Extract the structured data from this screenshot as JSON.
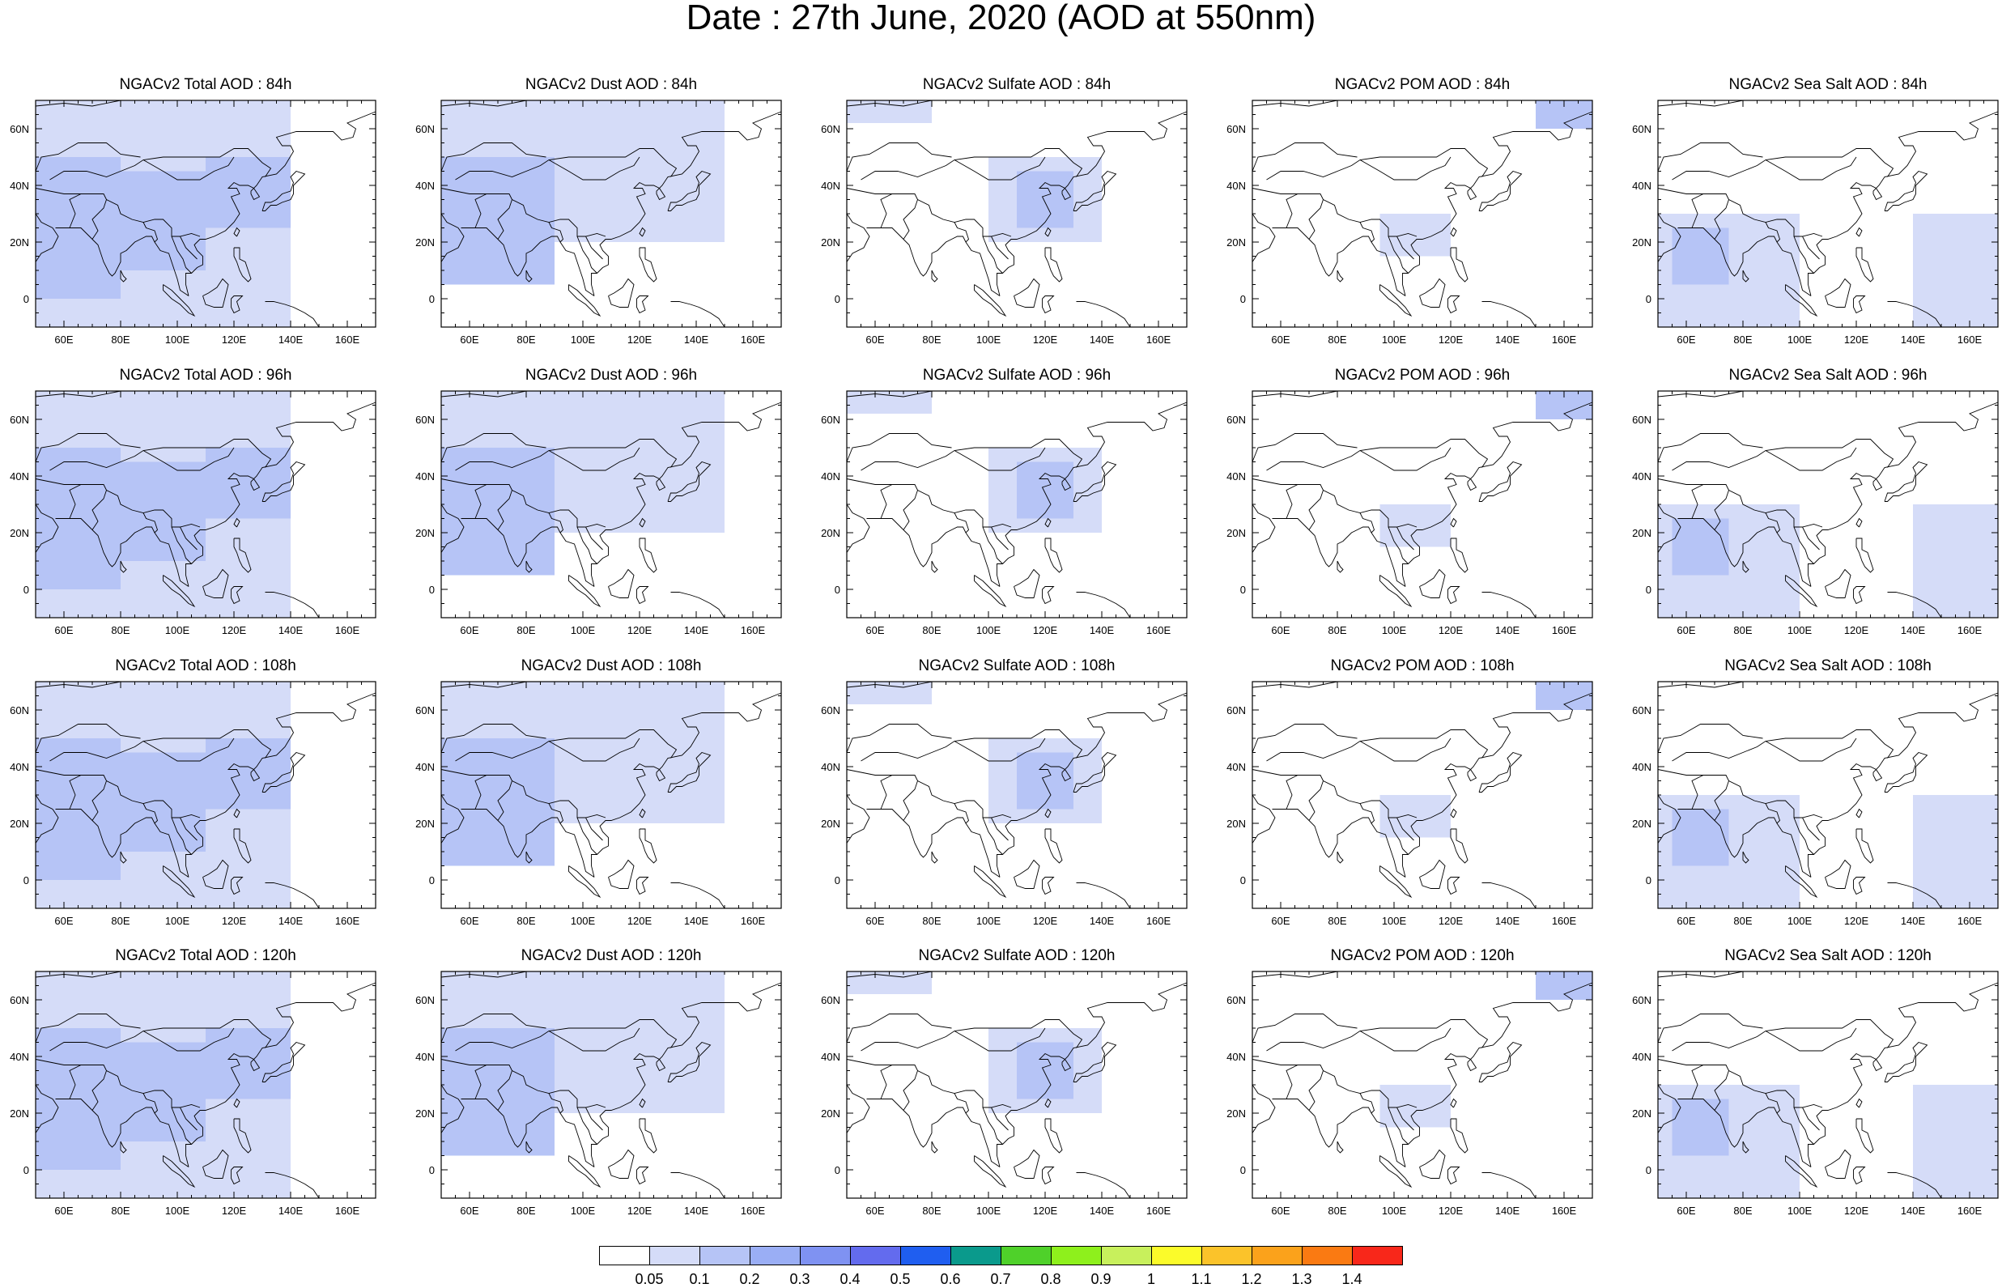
{
  "title": "Date : 27th June, 2020 (AOD at 550nm)",
  "lon_ticks": [
    "60E",
    "80E",
    "100E",
    "120E",
    "140E",
    "160E"
  ],
  "lon_values": [
    60,
    80,
    100,
    120,
    140,
    160
  ],
  "lat_ticks": [
    "60N",
    "40N",
    "20N",
    "0"
  ],
  "lat_values": [
    60,
    40,
    20,
    0
  ],
  "extent": {
    "lon": [
      50,
      170
    ],
    "lat": [
      -10,
      70
    ]
  },
  "panels": [
    [
      "NGACv2 Total AOD : 84h",
      "NGACv2 Dust AOD : 84h",
      "NGACv2 Sulfate AOD : 84h",
      "NGACv2 POM AOD : 84h",
      "NGACv2 Sea Salt AOD : 84h"
    ],
    [
      "NGACv2 Total AOD : 96h",
      "NGACv2 Dust AOD : 96h",
      "NGACv2 Sulfate AOD : 96h",
      "NGACv2 POM AOD : 96h",
      "NGACv2 Sea Salt AOD : 96h"
    ],
    [
      "NGACv2 Total AOD : 108h",
      "NGACv2 Dust AOD : 108h",
      "NGACv2 Sulfate AOD : 108h",
      "NGACv2 POM AOD : 108h",
      "NGACv2 Sea Salt AOD : 108h"
    ],
    [
      "NGACv2 Total AOD : 120h",
      "NGACv2 Dust AOD : 120h",
      "NGACv2 Sulfate AOD : 120h",
      "NGACv2 POM AOD : 120h",
      "NGACv2 Sea Salt  AOD : 120h"
    ]
  ],
  "colorbar": {
    "labels": [
      "0.05",
      "0.1",
      "0.2",
      "0.3",
      "0.4",
      "0.5",
      "0.6",
      "0.7",
      "0.8",
      "0.9",
      "1",
      "1.1",
      "1.2",
      "1.3",
      "1.4"
    ],
    "colors": [
      "#ffffff",
      "#d5dcf8",
      "#b6c4f6",
      "#9aaef5",
      "#7f92f2",
      "#636bee",
      "#1f5ef0",
      "#0a9a8c",
      "#4fd12a",
      "#8ef01c",
      "#c8f05c",
      "#fbfb2a",
      "#fbc32a",
      "#fba21b",
      "#fa7a12",
      "#f8271a"
    ]
  },
  "fields": {
    "total": [
      {
        "lon": [
          50,
          80
        ],
        "lat": [
          0,
          50
        ],
        "c": 2
      },
      {
        "lon": [
          80,
          110
        ],
        "lat": [
          10,
          45
        ],
        "c": 2
      },
      {
        "lon": [
          110,
          140
        ],
        "lat": [
          25,
          50
        ],
        "c": 2
      },
      {
        "lon": [
          55,
          75
        ],
        "lat": [
          15,
          38
        ],
        "c": 3
      },
      {
        "lon": [
          50,
          60
        ],
        "lat": [
          10,
          30
        ],
        "c": 4
      },
      {
        "lon": [
          50,
          140
        ],
        "lat": [
          -10,
          70
        ],
        "c": 1
      }
    ],
    "dust": [
      {
        "lon": [
          50,
          90
        ],
        "lat": [
          5,
          50
        ],
        "c": 2
      },
      {
        "lon": [
          55,
          75
        ],
        "lat": [
          15,
          38
        ],
        "c": 3
      },
      {
        "lon": [
          50,
          60
        ],
        "lat": [
          10,
          30
        ],
        "c": 4
      },
      {
        "lon": [
          50,
          150
        ],
        "lat": [
          20,
          70
        ],
        "c": 1
      }
    ],
    "sulfate": [
      {
        "lon": [
          110,
          130
        ],
        "lat": [
          25,
          45
        ],
        "c": 2
      },
      {
        "lon": [
          100,
          140
        ],
        "lat": [
          20,
          50
        ],
        "c": 1
      },
      {
        "lon": [
          50,
          80
        ],
        "lat": [
          62,
          70
        ],
        "c": 1
      }
    ],
    "pom": [
      {
        "lon": [
          150,
          170
        ],
        "lat": [
          60,
          70
        ],
        "c": 2
      },
      {
        "lon": [
          95,
          120
        ],
        "lat": [
          15,
          30
        ],
        "c": 1
      }
    ],
    "seasalt": [
      {
        "lon": [
          55,
          75
        ],
        "lat": [
          5,
          25
        ],
        "c": 2
      },
      {
        "lon": [
          50,
          100
        ],
        "lat": [
          -10,
          30
        ],
        "c": 1
      },
      {
        "lon": [
          140,
          170
        ],
        "lat": [
          -10,
          30
        ],
        "c": 1
      }
    ]
  }
}
